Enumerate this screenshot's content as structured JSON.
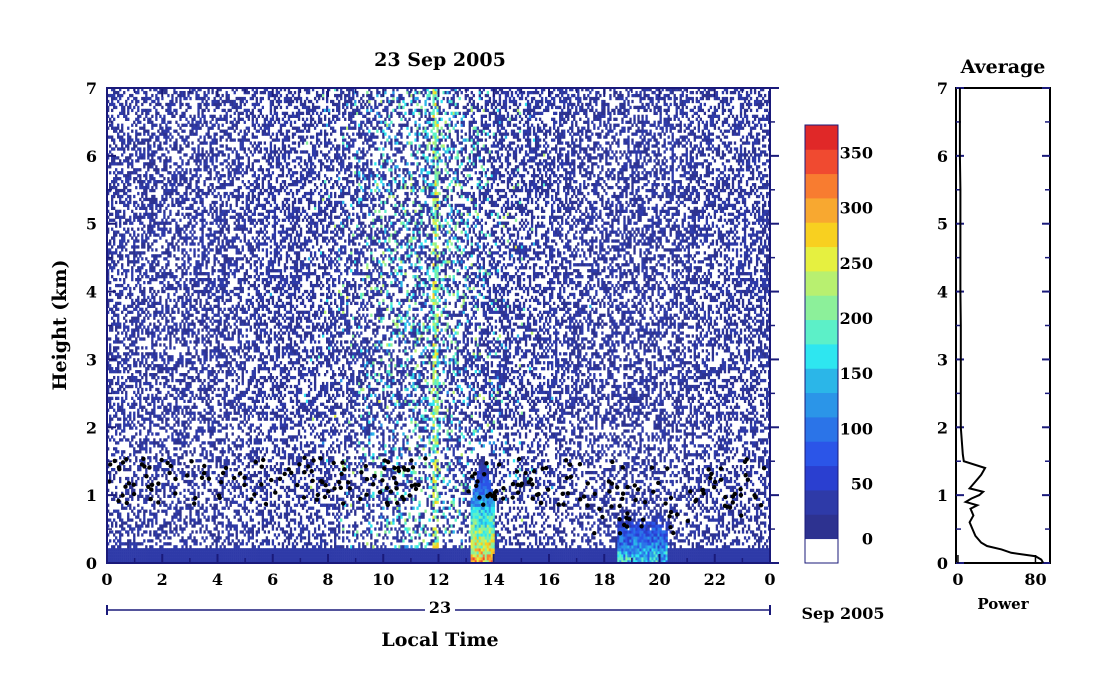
{
  "chart_data": [
    {
      "type": "heatmap",
      "title": "23 Sep 2005",
      "xlabel": "Local Time",
      "ylabel": "Height (km)",
      "x_ticks": [
        "0",
        "2",
        "4",
        "6",
        "8",
        "10",
        "12",
        "14",
        "16",
        "18",
        "20",
        "22",
        "0"
      ],
      "y_ticks": [
        "0",
        "1",
        "2",
        "3",
        "4",
        "5",
        "6",
        "7"
      ],
      "xlim": [
        0,
        24
      ],
      "ylim": [
        0,
        7
      ],
      "date_bar": {
        "day": "23",
        "month_year": "Sep 2005"
      },
      "colorbar": {
        "ticks": [
          "0",
          "50",
          "100",
          "150",
          "200",
          "250",
          "300",
          "350"
        ],
        "range": [
          0,
          375
        ],
        "colors": [
          "#ffffff",
          "#2d3290",
          "#2e3aa8",
          "#2a3fd0",
          "#2b55e8",
          "#2b74e8",
          "#2b95e8",
          "#2bb6e8",
          "#2ee6f0",
          "#5cf0c8",
          "#8cf09a",
          "#b8f070",
          "#e6f040",
          "#f8d020",
          "#f8a830",
          "#f87c30",
          "#f04a30",
          "#e02828"
        ]
      },
      "features": {
        "background_noise": "sparse blue speckle at all heights",
        "low_layer": {
          "height_km": [
            0,
            0.2
          ],
          "level": 25
        },
        "intense_echo": {
          "x_hours": [
            13.2,
            14.0
          ],
          "height_km": [
            0,
            1.5
          ],
          "max_level": 360
        },
        "cluster_echo": {
          "x_hours": [
            18.5,
            20.3
          ],
          "height_km": [
            0,
            0.8
          ],
          "max_level": 220
        },
        "vertical_streak": {
          "x_hours": 11.9,
          "height_km": [
            0,
            7
          ],
          "level": 280
        },
        "black_dots_layer": "scattered black points between 0.9 and 1.5 km"
      }
    },
    {
      "type": "line",
      "title": "Average",
      "xlabel": "Power",
      "x_ticks": [
        "0",
        "80"
      ],
      "y_ticks": [
        "0",
        "1",
        "2",
        "3",
        "4",
        "5",
        "6",
        "7"
      ],
      "xlim": [
        -2,
        95
      ],
      "ylim": [
        0,
        7
      ],
      "series": [
        {
          "height_km": [
            0,
            0.05,
            0.1,
            0.15,
            0.2,
            0.25,
            0.3,
            0.4,
            0.5,
            0.6,
            0.7,
            0.8,
            0.85,
            0.9,
            0.95,
            1.0,
            1.05,
            1.1,
            1.2,
            1.3,
            1.4,
            1.5,
            1.6,
            1.8,
            2.0,
            2.5,
            3.0,
            3.5,
            4.0,
            4.5,
            5.0,
            5.5,
            6.0,
            6.5,
            7.0
          ],
          "power": [
            88,
            86,
            80,
            55,
            45,
            30,
            24,
            18,
            15,
            12,
            16,
            13,
            20,
            8,
            14,
            22,
            26,
            12,
            18,
            24,
            28,
            6,
            5,
            4,
            3,
            3,
            3,
            3,
            2.5,
            2.5,
            2.5,
            2.5,
            2,
            2,
            2
          ]
        }
      ]
    }
  ]
}
